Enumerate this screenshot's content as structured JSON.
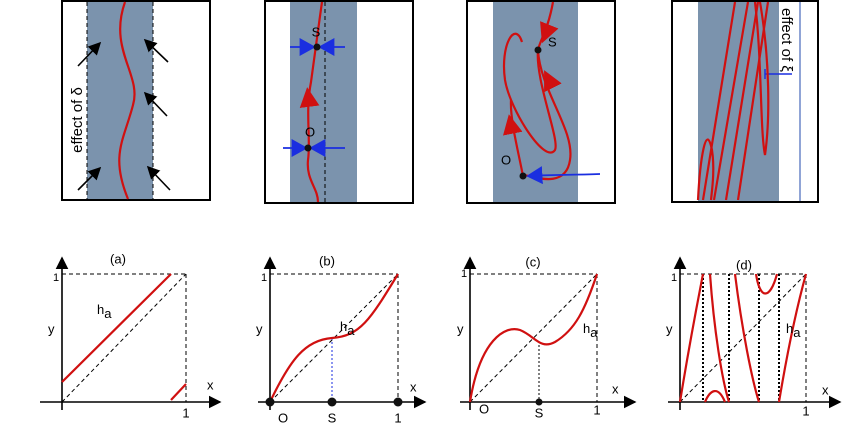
{
  "top_panels": [
    {
      "annotation": "effect of δ"
    },
    {
      "points": [
        "S",
        "O"
      ]
    },
    {
      "points": [
        "S",
        "O"
      ]
    },
    {
      "annotation": "effect of ξ"
    }
  ],
  "bottom_panels": [
    {
      "title": "(a)",
      "y_label": "y",
      "x_label": "x",
      "y_tick": "1",
      "x_ticks": [
        "1"
      ],
      "curve_label": {
        "main": "h",
        "subscript": "a"
      }
    },
    {
      "title": "(b)",
      "y_label": "y",
      "x_label": "x",
      "y_tick": "1",
      "x_ticks": [
        "O",
        "S",
        "1"
      ],
      "curve_label": {
        "main": "h",
        "subscript": "a"
      }
    },
    {
      "title": "(c)",
      "y_label": "y",
      "x_label": "x",
      "y_tick": "1",
      "x_ticks": [
        "O",
        "S",
        "1"
      ],
      "curve_label": {
        "main": "h",
        "subscript": "a"
      }
    },
    {
      "title": "(d)",
      "y_label": "y",
      "x_label": "x",
      "y_tick": "1",
      "x_ticks": [
        "1"
      ],
      "curve_label": {
        "main": "h",
        "subscript": "a"
      }
    }
  ]
}
